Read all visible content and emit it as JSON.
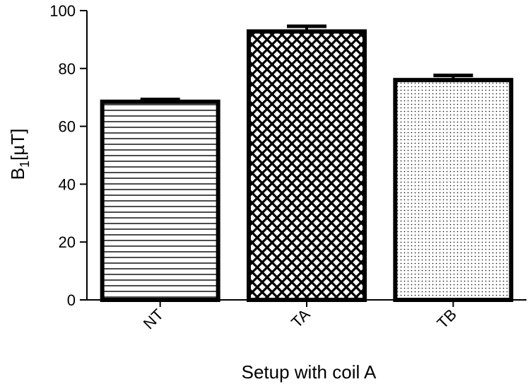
{
  "chart_data": {
    "type": "bar",
    "title": "",
    "xlabel": "Setup with coil A",
    "ylabel": "B1[µT]",
    "ylabel_main": "B",
    "ylabel_sub": "1",
    "ylabel_unit": "[µT]",
    "categories": [
      "NT",
      "TA",
      "TB"
    ],
    "values": [
      68.5,
      92.8,
      76.0
    ],
    "errors": [
      0.8,
      1.8,
      1.6
    ],
    "patterns": [
      "horizontal-lines",
      "crosshatch",
      "dots"
    ],
    "ylim": [
      0,
      100
    ],
    "yticks": [
      "0",
      "20",
      "40",
      "60",
      "80",
      "100"
    ],
    "grid": false,
    "legend": "none"
  }
}
